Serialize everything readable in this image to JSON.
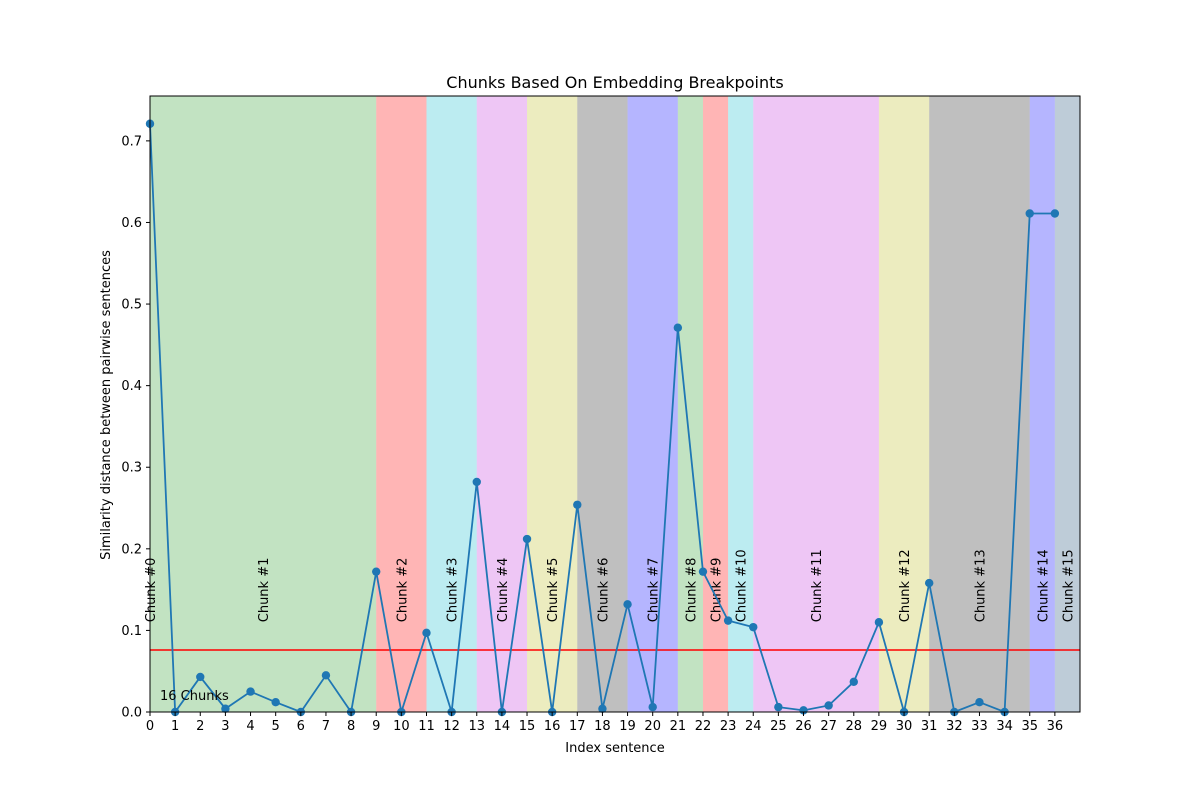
{
  "chart_data": {
    "type": "line",
    "title": "Chunks Based On Embedding Breakpoints",
    "xlabel": "Index sentence",
    "ylabel": "Similarity distance between pairwise sentences",
    "xlim": [
      0,
      37
    ],
    "ylim": [
      0,
      0.755
    ],
    "x_ticks": [
      0,
      1,
      2,
      3,
      4,
      5,
      6,
      7,
      8,
      9,
      10,
      11,
      12,
      13,
      14,
      15,
      16,
      17,
      18,
      19,
      20,
      21,
      22,
      23,
      24,
      25,
      26,
      27,
      28,
      29,
      30,
      31,
      32,
      33,
      34,
      35,
      36
    ],
    "y_ticks": [
      0.0,
      0.1,
      0.2,
      0.3,
      0.4,
      0.5,
      0.6,
      0.7
    ],
    "series": [
      {
        "color": "#1f77b4",
        "x": [
          0,
          1,
          2,
          3,
          4,
          5,
          6,
          7,
          8,
          9,
          10,
          11,
          12,
          13,
          14,
          15,
          16,
          17,
          18,
          19,
          20,
          21,
          22,
          23,
          24,
          25,
          26,
          27,
          28,
          29,
          30,
          31,
          32,
          33,
          34,
          35,
          36
        ],
        "values": [
          0.721,
          0.0,
          0.043,
          0.004,
          0.025,
          0.012,
          0.0,
          0.045,
          0.0,
          0.172,
          0.0,
          0.097,
          0.0,
          0.282,
          0.0,
          0.212,
          0.0,
          0.254,
          0.004,
          0.132,
          0.006,
          0.471,
          0.172,
          0.112,
          0.104,
          0.006,
          0.002,
          0.008,
          0.037,
          0.11,
          0.0,
          0.158,
          0.0,
          0.012,
          0.0,
          0.611,
          0.611
        ]
      }
    ],
    "threshold": {
      "value": 0.076,
      "color": "#ff0000"
    },
    "chunks": [
      {
        "label": "Chunk #0",
        "start": 0,
        "end": 0,
        "color": "#2ca02c"
      },
      {
        "label": "Chunk #1",
        "start": 0,
        "end": 9,
        "color": "#2ca02c"
      },
      {
        "label": "Chunk #2",
        "start": 9,
        "end": 11,
        "color": "#ff0000"
      },
      {
        "label": "Chunk #3",
        "start": 11,
        "end": 13,
        "color": "#17becf"
      },
      {
        "label": "Chunk #4",
        "start": 13,
        "end": 15,
        "color": "#c43adb"
      },
      {
        "label": "Chunk #5",
        "start": 15,
        "end": 17,
        "color": "#bcbd22"
      },
      {
        "label": "Chunk #6",
        "start": 17,
        "end": 19,
        "color": "#222222"
      },
      {
        "label": "Chunk #7",
        "start": 19,
        "end": 21,
        "color": "#0000ff"
      },
      {
        "label": "Chunk #8",
        "start": 21,
        "end": 22,
        "color": "#2ca02c"
      },
      {
        "label": "Chunk #9",
        "start": 22,
        "end": 23,
        "color": "#ff0000"
      },
      {
        "label": "Chunk #10",
        "start": 23,
        "end": 24,
        "color": "#17becf"
      },
      {
        "label": "Chunk #11",
        "start": 24,
        "end": 29,
        "color": "#c43adb"
      },
      {
        "label": "Chunk #12",
        "start": 29,
        "end": 31,
        "color": "#bcbd22"
      },
      {
        "label": "Chunk #13",
        "start": 31,
        "end": 35,
        "color": "#222222"
      },
      {
        "label": "Chunk #14",
        "start": 35,
        "end": 36,
        "color": "#0000ff"
      },
      {
        "label": "Chunk #15",
        "start": 36,
        "end": 37,
        "color": "#1f4e79"
      }
    ],
    "annotation": "16 Chunks",
    "grid": false,
    "legend": "none"
  }
}
